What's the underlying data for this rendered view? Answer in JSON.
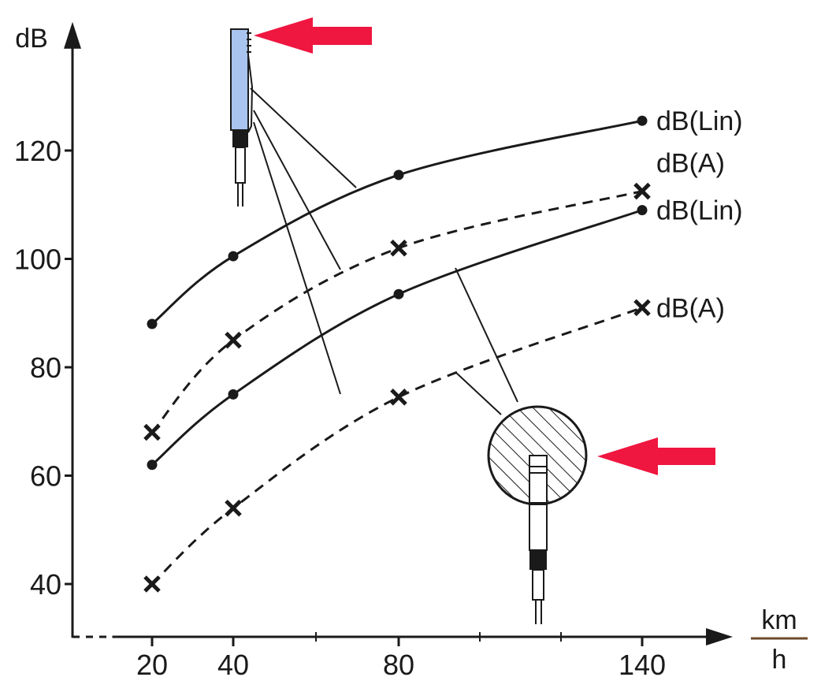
{
  "chart_data": {
    "type": "line",
    "xlabel": {
      "numerator": "km",
      "denominator": "h"
    },
    "ylabel": "dB",
    "x_ticks": [
      20,
      40,
      80,
      140
    ],
    "y_ticks": [
      40,
      60,
      80,
      100,
      120
    ],
    "xlim": [
      0,
      160
    ],
    "ylim": [
      33,
      142
    ],
    "grid": false,
    "series": [
      {
        "name": "dB(Lin)",
        "marker": "dot",
        "line": "solid",
        "x": [
          20,
          40,
          80,
          140
        ],
        "y": [
          88,
          100.5,
          115.5,
          125.5
        ]
      },
      {
        "name": "dB(A)",
        "marker": "cross",
        "line": "dashed",
        "x": [
          20,
          40,
          80,
          140
        ],
        "y": [
          68,
          85,
          102,
          112.5
        ]
      },
      {
        "name": "dB(Lin)",
        "marker": "dot",
        "line": "solid",
        "x": [
          20,
          40,
          80,
          140
        ],
        "y": [
          62,
          75,
          93.5,
          109
        ]
      },
      {
        "name": "dB(A)",
        "marker": "cross",
        "line": "dashed",
        "x": [
          20,
          40,
          80,
          140
        ],
        "y": [
          40,
          54,
          74.5,
          91
        ]
      }
    ],
    "colors": {
      "ink": "#1a1a1a",
      "arrow": "#ef1640",
      "mic_body": "#a9c4ee"
    }
  }
}
